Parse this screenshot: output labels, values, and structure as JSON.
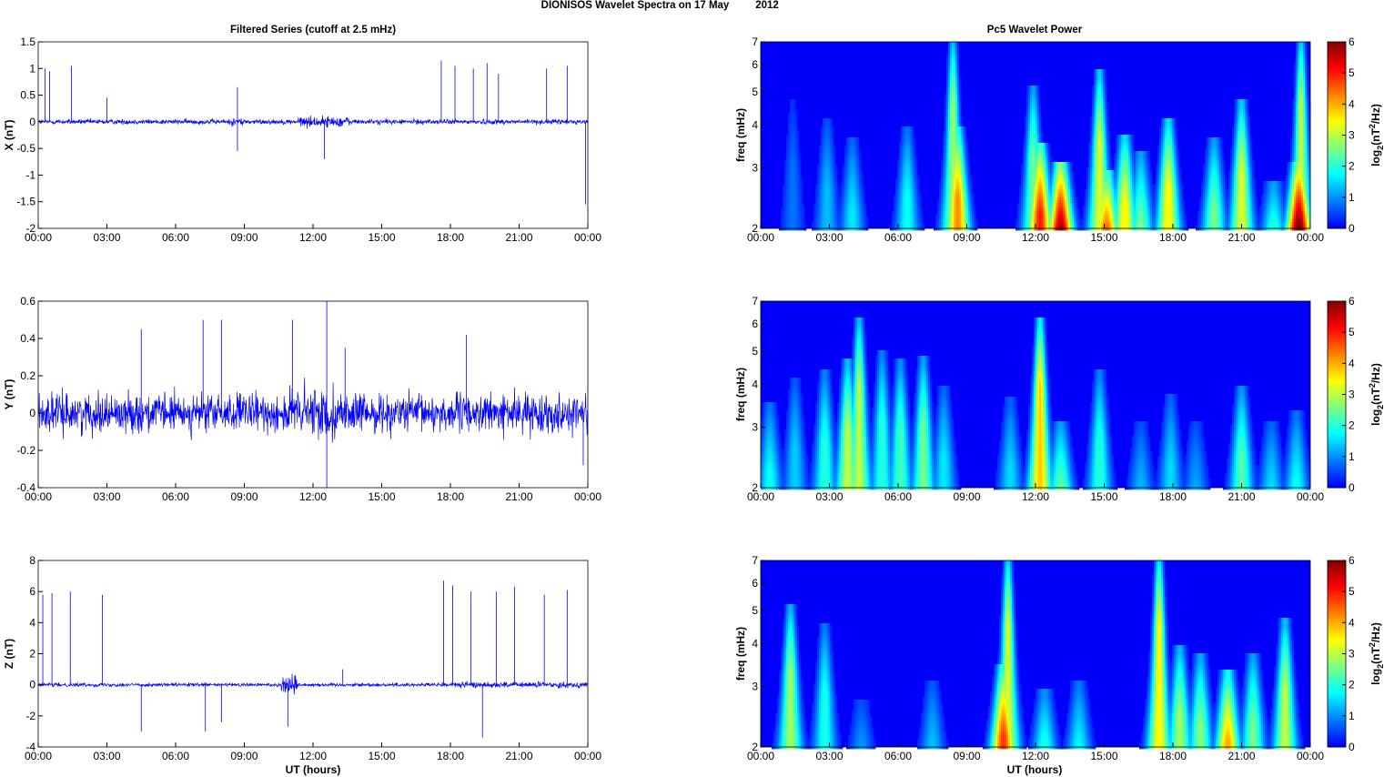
{
  "figure": {
    "title": "DIONISOS Wavelet Spectra on 17 May",
    "title_year": "2012",
    "left_title": "Filtered Series (cutoff at 2.5 mHz)",
    "right_title": "Pc5 Wavelet Power",
    "xlabel": "UT (hours)",
    "freq_label": "freq (mHz)",
    "colorbar_label_parts": [
      "log",
      "2",
      "(nT",
      "2",
      "/Hz)"
    ]
  },
  "chart_data": [
    {
      "type": "line",
      "ylabel": "X (nT)",
      "ylim": [
        -2,
        1.5
      ],
      "yticks": [
        "1.5",
        "1",
        "0.5",
        "0",
        "-0.5",
        "-1",
        "-1.5",
        "-2"
      ],
      "xlim": [
        0,
        24
      ],
      "xticks": [
        "00:00",
        "03:00",
        "06:00",
        "09:00",
        "12:00",
        "15:00",
        "18:00",
        "21:00",
        "00:00"
      ],
      "series": [
        {
          "color": "#0000ff",
          "baseline": 0,
          "noise_amplitude": 0.06,
          "spikes": [
            [
              0.3,
              1.0
            ],
            [
              0.5,
              0.95
            ],
            [
              1.45,
              1.05
            ],
            [
              3.0,
              0.45
            ],
            [
              8.7,
              0.65
            ],
            [
              8.7,
              -0.55
            ],
            [
              12.5,
              -0.7
            ],
            [
              17.6,
              1.15
            ],
            [
              18.2,
              1.05
            ],
            [
              19.0,
              1.0
            ],
            [
              19.6,
              1.1
            ],
            [
              20.1,
              0.9
            ],
            [
              22.2,
              1.0
            ],
            [
              23.1,
              1.05
            ],
            [
              23.9,
              -1.55
            ]
          ]
        }
      ]
    },
    {
      "type": "line",
      "ylabel": "Y (nT)",
      "ylim": [
        -0.4,
        0.6
      ],
      "yticks": [
        "0.6",
        "0.4",
        "0.2",
        "0",
        "-0.2",
        "-0.4"
      ],
      "xlim": [
        0,
        24
      ],
      "xticks": [
        "00:00",
        "03:00",
        "06:00",
        "09:00",
        "12:00",
        "15:00",
        "18:00",
        "21:00",
        "00:00"
      ],
      "series": [
        {
          "color": "#0000ff",
          "baseline": 0,
          "noise_amplitude": 0.13,
          "spikes": [
            [
              4.5,
              0.45
            ],
            [
              7.2,
              0.5
            ],
            [
              8.0,
              0.5
            ],
            [
              11.1,
              0.5
            ],
            [
              12.6,
              0.6
            ],
            [
              12.6,
              -0.4
            ],
            [
              13.4,
              0.35
            ],
            [
              18.7,
              0.42
            ],
            [
              23.8,
              -0.28
            ]
          ]
        }
      ]
    },
    {
      "type": "line",
      "ylabel": "Z (nT)",
      "ylim": [
        -4,
        8
      ],
      "yticks": [
        "8",
        "6",
        "4",
        "2",
        "0",
        "-2",
        "-4"
      ],
      "xlim": [
        0,
        24
      ],
      "xticks": [
        "00:00",
        "03:00",
        "06:00",
        "09:00",
        "12:00",
        "15:00",
        "18:00",
        "21:00",
        "00:00"
      ],
      "series": [
        {
          "color": "#0000ff",
          "baseline": 0,
          "noise_amplitude": 0.15,
          "spikes": [
            [
              0.2,
              5.8
            ],
            [
              0.6,
              5.9
            ],
            [
              1.4,
              6.0
            ],
            [
              2.8,
              5.8
            ],
            [
              4.5,
              -3.0
            ],
            [
              7.3,
              -3.0
            ],
            [
              8.0,
              -2.4
            ],
            [
              10.9,
              -2.7
            ],
            [
              13.3,
              1.0
            ],
            [
              17.7,
              6.7
            ],
            [
              18.1,
              6.4
            ],
            [
              18.9,
              6.0
            ],
            [
              19.4,
              -3.4
            ],
            [
              20.0,
              6.0
            ],
            [
              20.8,
              6.3
            ],
            [
              22.1,
              5.8
            ],
            [
              23.1,
              6.1
            ]
          ]
        }
      ]
    },
    {
      "type": "heatmap",
      "ylabel": "freq (mHz)",
      "ylim": [
        2,
        7
      ],
      "yscale": "log",
      "yticks": [
        "7",
        "6",
        "5",
        "4",
        "3",
        "2"
      ],
      "xlim": [
        0,
        24
      ],
      "xticks": [
        "00:00",
        "03:00",
        "06:00",
        "09:00",
        "12:00",
        "15:00",
        "18:00",
        "21:00",
        "00:00"
      ],
      "clim": [
        0,
        6
      ],
      "cticks": [
        "6",
        "5",
        "4",
        "3",
        "2",
        "1",
        "0"
      ],
      "colormap": "jet",
      "bursts": [
        [
          1.4,
          0.8,
          4.5
        ],
        [
          2.9,
          1.3,
          4.0
        ],
        [
          4.0,
          1.6,
          3.5
        ],
        [
          6.4,
          1.8,
          3.8
        ],
        [
          8.4,
          2.8,
          7.0
        ],
        [
          8.6,
          4.2,
          3.8
        ],
        [
          11.9,
          2.5,
          5.0
        ],
        [
          12.2,
          5.0,
          3.4
        ],
        [
          13.1,
          6.0,
          3.0
        ],
        [
          14.8,
          3.2,
          5.5
        ],
        [
          15.1,
          5.0,
          2.8
        ],
        [
          15.9,
          3.5,
          3.6
        ],
        [
          16.6,
          2.5,
          3.2
        ],
        [
          17.8,
          3.5,
          4.0
        ],
        [
          19.8,
          2.5,
          3.5
        ],
        [
          21.0,
          3.2,
          4.5
        ],
        [
          22.4,
          2.5,
          2.6
        ],
        [
          23.6,
          3.0,
          7.0
        ],
        [
          23.5,
          6.4,
          3.0
        ]
      ]
    },
    {
      "type": "heatmap",
      "ylabel": "freq (mHz)",
      "ylim": [
        2,
        7
      ],
      "yscale": "log",
      "yticks": [
        "7",
        "6",
        "5",
        "4",
        "3",
        "2"
      ],
      "xlim": [
        0,
        24
      ],
      "xticks": [
        "00:00",
        "03:00",
        "06:00",
        "09:00",
        "12:00",
        "15:00",
        "18:00",
        "21:00",
        "00:00"
      ],
      "clim": [
        0,
        6
      ],
      "cticks": [
        "6",
        "5",
        "4",
        "3",
        "2",
        "1",
        "0"
      ],
      "colormap": "jet",
      "bursts": [
        [
          0.4,
          1.8,
          3.4
        ],
        [
          1.5,
          1.4,
          4.0
        ],
        [
          2.8,
          2.0,
          4.2
        ],
        [
          3.8,
          3.0,
          4.5
        ],
        [
          4.3,
          3.0,
          6.0
        ],
        [
          5.3,
          2.0,
          4.8
        ],
        [
          6.1,
          2.2,
          4.5
        ],
        [
          7.1,
          2.5,
          4.6
        ],
        [
          8.0,
          1.6,
          3.8
        ],
        [
          10.9,
          1.5,
          3.5
        ],
        [
          12.2,
          3.8,
          6.0
        ],
        [
          13.1,
          2.5,
          3.0
        ],
        [
          14.8,
          2.0,
          4.2
        ],
        [
          16.6,
          1.3,
          3.0
        ],
        [
          17.9,
          1.5,
          3.6
        ],
        [
          19.0,
          1.2,
          3.0
        ],
        [
          21.0,
          2.3,
          3.8
        ],
        [
          22.3,
          1.6,
          3.0
        ],
        [
          23.4,
          1.8,
          3.2
        ]
      ]
    },
    {
      "type": "heatmap",
      "ylabel": "freq (mHz)",
      "ylim": [
        2,
        7
      ],
      "yscale": "log",
      "yticks": [
        "7",
        "6",
        "5",
        "4",
        "3",
        "2"
      ],
      "xlim": [
        0,
        24
      ],
      "xticks": [
        "00:00",
        "03:00",
        "06:00",
        "09:00",
        "12:00",
        "15:00",
        "18:00",
        "21:00",
        "00:00"
      ],
      "clim": [
        0,
        6
      ],
      "cticks": [
        "6",
        "5",
        "4",
        "3",
        "2",
        "1",
        "0"
      ],
      "colormap": "jet",
      "bursts": [
        [
          1.3,
          2.8,
          5.0
        ],
        [
          2.8,
          1.9,
          4.4
        ],
        [
          4.4,
          1.3,
          2.6
        ],
        [
          7.5,
          1.4,
          3.0
        ],
        [
          10.6,
          4.8,
          3.3
        ],
        [
          10.8,
          3.2,
          7.0
        ],
        [
          12.4,
          2.2,
          2.8
        ],
        [
          13.9,
          1.8,
          3.0
        ],
        [
          17.4,
          3.5,
          7.0
        ],
        [
          18.3,
          2.8,
          3.8
        ],
        [
          19.2,
          2.6,
          3.6
        ],
        [
          20.4,
          4.0,
          3.2
        ],
        [
          21.5,
          2.5,
          3.6
        ],
        [
          22.9,
          3.0,
          4.5
        ]
      ]
    }
  ]
}
